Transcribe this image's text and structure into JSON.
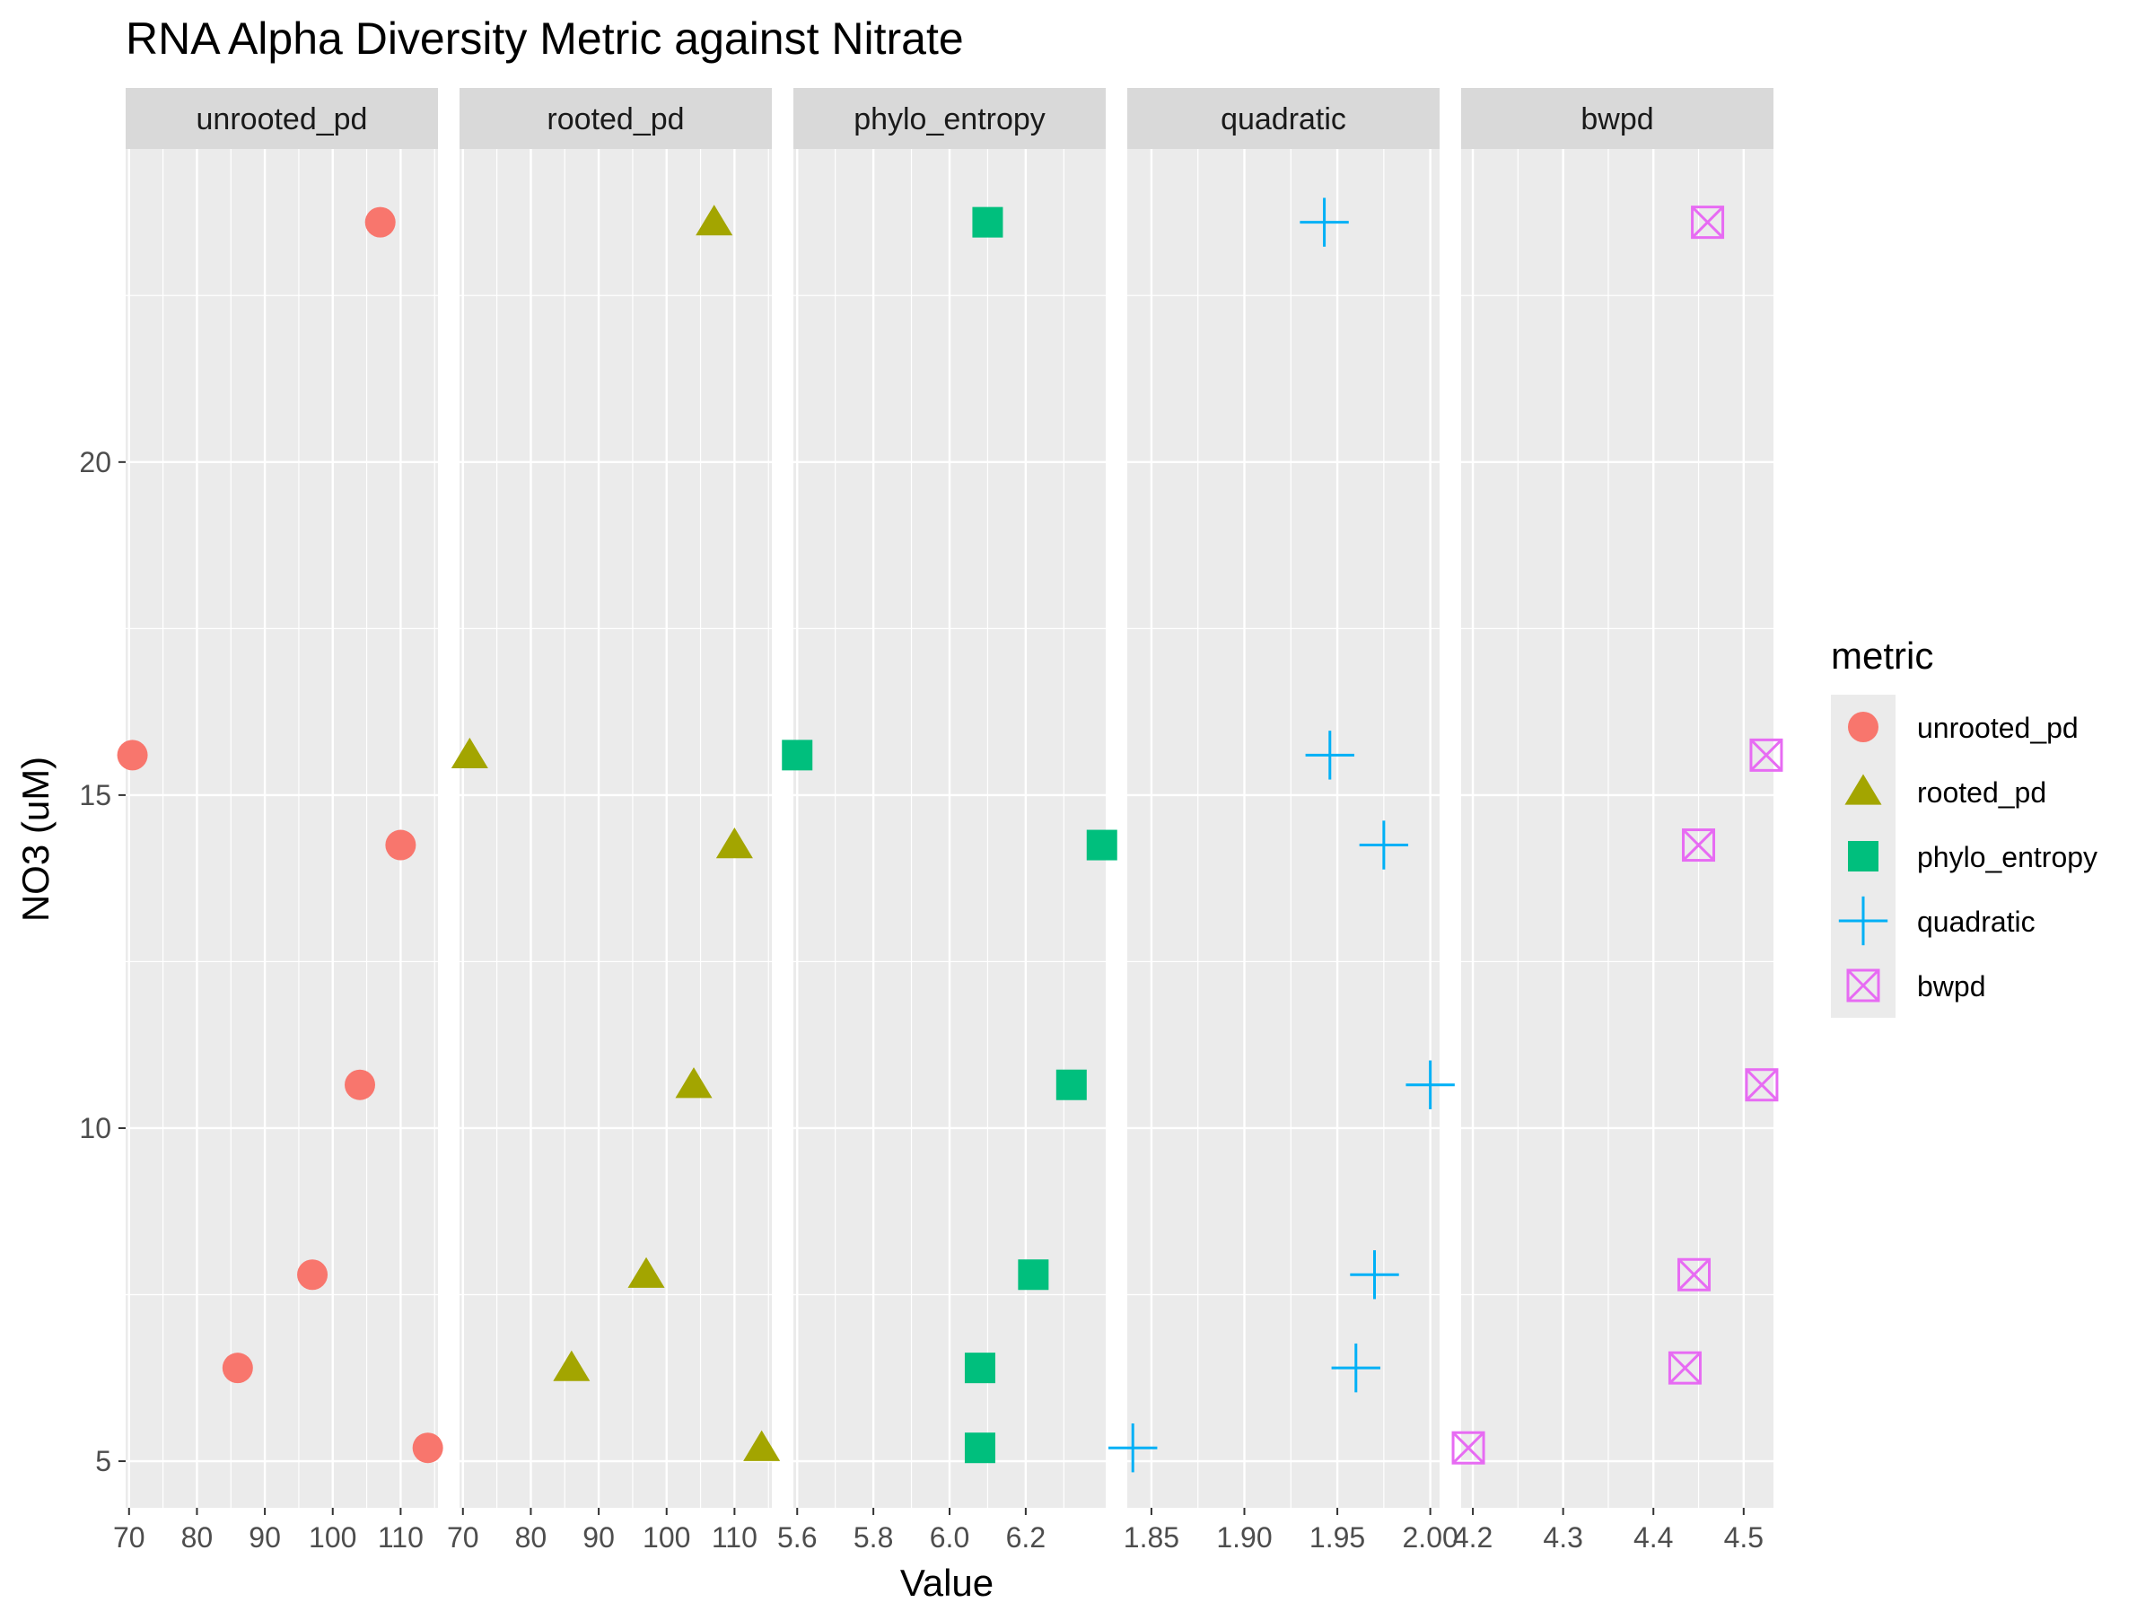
{
  "chart_data": {
    "type": "scatter",
    "title": "RNA Alpha Diversity Metric against Nitrate",
    "xlabel": "Value",
    "ylabel": "NO3 (uM)",
    "grid": true,
    "legend_placement": "right",
    "legend_title": "metric",
    "y_ticks": [
      5,
      10,
      15,
      20
    ],
    "ylim": [
      4.3,
      24.7
    ],
    "facets": [
      {
        "name": "unrooted_pd",
        "shape": "circle",
        "color": "#F8766D",
        "xlim": [
          69.5,
          115.5
        ],
        "x_ticks": [
          70,
          80,
          90,
          100,
          110
        ],
        "x_tick_labels": [
          "70",
          "80",
          "90",
          "100",
          "110"
        ],
        "points": [
          {
            "x": 107,
            "y": 23.6
          },
          {
            "x": 70.5,
            "y": 15.6
          },
          {
            "x": 110,
            "y": 14.25
          },
          {
            "x": 104,
            "y": 10.65
          },
          {
            "x": 97,
            "y": 7.8
          },
          {
            "x": 86,
            "y": 6.4
          },
          {
            "x": 114,
            "y": 5.2
          }
        ]
      },
      {
        "name": "rooted_pd",
        "shape": "triangle",
        "color": "#A3A500",
        "xlim": [
          69.5,
          115.5
        ],
        "x_ticks": [
          70,
          80,
          90,
          100,
          110
        ],
        "x_tick_labels": [
          "70",
          "80",
          "90",
          "100",
          "110"
        ],
        "points": [
          {
            "x": 107,
            "y": 23.6
          },
          {
            "x": 71,
            "y": 15.6
          },
          {
            "x": 110,
            "y": 14.25
          },
          {
            "x": 104,
            "y": 10.65
          },
          {
            "x": 97,
            "y": 7.8
          },
          {
            "x": 86,
            "y": 6.4
          },
          {
            "x": 114,
            "y": 5.2
          }
        ]
      },
      {
        "name": "phylo_entropy",
        "shape": "square",
        "color": "#00BF7D",
        "xlim": [
          5.59,
          6.41
        ],
        "x_ticks": [
          5.6,
          5.8,
          6.0,
          6.2
        ],
        "x_tick_labels": [
          "5.6",
          "5.8",
          "6.0",
          "6.2"
        ],
        "points": [
          {
            "x": 6.1,
            "y": 23.6
          },
          {
            "x": 5.6,
            "y": 15.6
          },
          {
            "x": 6.4,
            "y": 14.25
          },
          {
            "x": 6.32,
            "y": 10.65
          },
          {
            "x": 6.22,
            "y": 7.8
          },
          {
            "x": 6.08,
            "y": 6.4
          },
          {
            "x": 6.08,
            "y": 5.2
          }
        ]
      },
      {
        "name": "quadratic",
        "shape": "plus",
        "color": "#00B0F6",
        "xlim": [
          1.837,
          2.005
        ],
        "x_ticks": [
          1.85,
          1.9,
          1.95,
          2.0
        ],
        "x_tick_labels": [
          "1.85",
          "1.90",
          "1.95",
          "2.00"
        ],
        "points": [
          {
            "x": 1.943,
            "y": 23.6
          },
          {
            "x": 1.946,
            "y": 15.6
          },
          {
            "x": 1.975,
            "y": 14.25
          },
          {
            "x": 2.0,
            "y": 10.65
          },
          {
            "x": 1.97,
            "y": 7.8
          },
          {
            "x": 1.96,
            "y": 6.4
          },
          {
            "x": 1.84,
            "y": 5.2
          }
        ]
      },
      {
        "name": "bwpd",
        "shape": "square-cross",
        "color": "#E76BF3",
        "xlim": [
          4.187,
          4.533
        ],
        "x_ticks": [
          4.2,
          4.3,
          4.4,
          4.5
        ],
        "x_tick_labels": [
          "4.2",
          "4.3",
          "4.4",
          "4.5"
        ],
        "points": [
          {
            "x": 4.46,
            "y": 23.6
          },
          {
            "x": 4.525,
            "y": 15.6
          },
          {
            "x": 4.45,
            "y": 14.25
          },
          {
            "x": 4.52,
            "y": 10.65
          },
          {
            "x": 4.445,
            "y": 7.8
          },
          {
            "x": 4.435,
            "y": 6.4
          },
          {
            "x": 4.195,
            "y": 5.2
          }
        ]
      }
    ],
    "legend": [
      {
        "label": "unrooted_pd",
        "shape": "circle",
        "color": "#F8766D"
      },
      {
        "label": "rooted_pd",
        "shape": "triangle",
        "color": "#A3A500"
      },
      {
        "label": "phylo_entropy",
        "shape": "square",
        "color": "#00BF7D"
      },
      {
        "label": "quadratic",
        "shape": "plus",
        "color": "#00B0F6"
      },
      {
        "label": "bwpd",
        "shape": "square-cross",
        "color": "#E76BF3"
      }
    ]
  }
}
